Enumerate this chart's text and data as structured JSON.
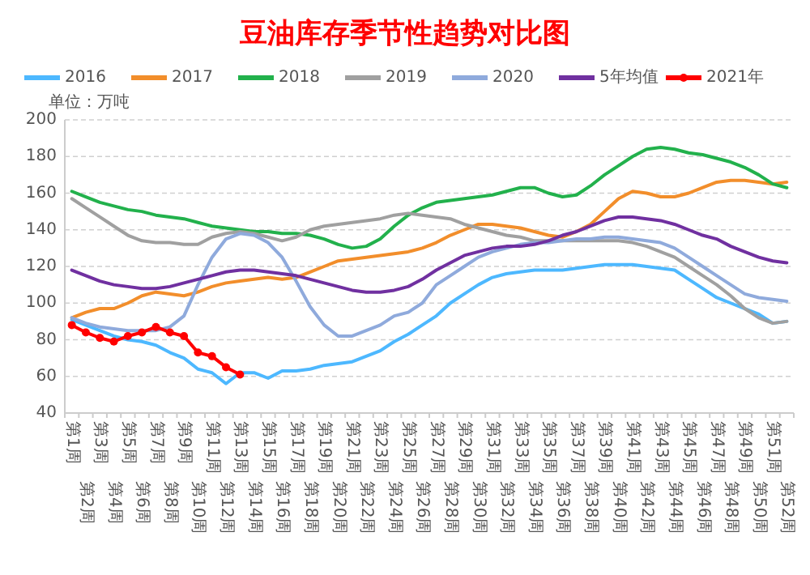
{
  "chart_data": {
    "type": "line",
    "title": "豆油库存季节性趋势对比图",
    "ylabel": "单位：万吨",
    "categories": [
      "第1周",
      "第2周",
      "第3周",
      "第4周",
      "第5周",
      "第6周",
      "第7周",
      "第8周",
      "第9周",
      "第10周",
      "第11周",
      "第12周",
      "第13周",
      "第14周",
      "第15周",
      "第16周",
      "第17周",
      "第18周",
      "第19周",
      "第20周",
      "第21周",
      "第22周",
      "第23周",
      "第24周",
      "第25周",
      "第26周",
      "第27周",
      "第28周",
      "第29周",
      "第30周",
      "第31周",
      "第32周",
      "第33周",
      "第34周",
      "第35周",
      "第36周",
      "第37周",
      "第38周",
      "第39周",
      "第40周",
      "第41周",
      "第42周",
      "第43周",
      "第44周",
      "第45周",
      "第46周",
      "第47周",
      "第48周",
      "第49周",
      "第50周",
      "第51周",
      "第52周"
    ],
    "ylim": [
      40,
      200
    ],
    "yticks": [
      40,
      60,
      80,
      100,
      120,
      140,
      160,
      180,
      200
    ],
    "grid": "y",
    "legend": "top",
    "line_style": "solid",
    "series": [
      {
        "name": "2016",
        "color": "#4db8ff",
        "values": [
          91,
          88,
          85,
          82,
          80,
          79,
          77,
          73,
          70,
          64,
          62,
          56,
          62,
          62,
          59,
          63,
          63,
          64,
          66,
          67,
          68,
          71,
          74,
          79,
          83,
          88,
          93,
          100,
          105,
          110,
          114,
          116,
          117,
          118,
          118,
          118,
          119,
          120,
          121,
          121,
          121,
          120,
          119,
          118,
          113,
          108,
          103,
          100,
          97,
          94,
          89,
          90
        ]
      },
      {
        "name": "2017",
        "color": "#f28e2b",
        "values": [
          92,
          95,
          97,
          97,
          100,
          104,
          106,
          105,
          104,
          106,
          109,
          111,
          112,
          113,
          114,
          113,
          114,
          117,
          120,
          123,
          124,
          125,
          126,
          127,
          128,
          130,
          133,
          137,
          140,
          143,
          143,
          142,
          141,
          139,
          137,
          136,
          139,
          143,
          150,
          157,
          161,
          160,
          158,
          158,
          160,
          163,
          166,
          167,
          167,
          166,
          165,
          166
        ]
      },
      {
        "name": "2018",
        "color": "#22b14c",
        "values": [
          161,
          158,
          155,
          153,
          151,
          150,
          148,
          147,
          146,
          144,
          142,
          141,
          140,
          139,
          139,
          138,
          138,
          137,
          135,
          132,
          130,
          131,
          135,
          142,
          148,
          152,
          155,
          156,
          157,
          158,
          159,
          161,
          163,
          163,
          160,
          158,
          159,
          164,
          170,
          175,
          180,
          184,
          185,
          184,
          182,
          181,
          179,
          177,
          174,
          170,
          165,
          163
        ]
      },
      {
        "name": "2019",
        "color": "#a0a0a0",
        "values": [
          157,
          152,
          147,
          142,
          137,
          134,
          133,
          133,
          132,
          132,
          136,
          138,
          139,
          138,
          136,
          134,
          136,
          140,
          142,
          143,
          144,
          145,
          146,
          148,
          149,
          148,
          147,
          146,
          143,
          141,
          139,
          137,
          136,
          134,
          134,
          134,
          134,
          134,
          134,
          134,
          133,
          131,
          128,
          125,
          120,
          115,
          110,
          104,
          97,
          92,
          89,
          90
        ]
      },
      {
        "name": "2020",
        "color": "#8faadc",
        "values": [
          92,
          89,
          87,
          86,
          85,
          85,
          85,
          87,
          93,
          110,
          125,
          135,
          138,
          137,
          133,
          125,
          112,
          98,
          88,
          82,
          82,
          85,
          88,
          93,
          95,
          100,
          110,
          115,
          120,
          125,
          128,
          130,
          132,
          133,
          133,
          134,
          135,
          135,
          136,
          136,
          135,
          134,
          133,
          130,
          125,
          120,
          115,
          110,
          105,
          103,
          102,
          101
        ]
      },
      {
        "name": "5年均值",
        "color": "#7030a0",
        "values": [
          118,
          115,
          112,
          110,
          109,
          108,
          108,
          109,
          111,
          113,
          115,
          117,
          118,
          118,
          117,
          116,
          115,
          113,
          111,
          109,
          107,
          106,
          106,
          107,
          109,
          113,
          118,
          122,
          126,
          128,
          130,
          131,
          131,
          132,
          134,
          137,
          139,
          142,
          145,
          147,
          147,
          146,
          145,
          143,
          140,
          137,
          135,
          131,
          128,
          125,
          123,
          122
        ]
      },
      {
        "name": "2021年",
        "color": "#ff0000",
        "marker": "circle",
        "values": [
          88,
          84,
          81,
          79,
          82,
          84,
          87,
          84,
          82,
          73,
          71,
          65,
          61,
          null,
          null,
          null,
          null,
          null,
          null,
          null,
          null,
          null,
          null,
          null,
          null,
          null,
          null,
          null,
          null,
          null,
          null,
          null,
          null,
          null,
          null,
          null,
          null,
          null,
          null,
          null,
          null,
          null,
          null,
          null,
          null,
          null,
          null,
          null,
          null,
          null,
          null,
          null
        ]
      }
    ]
  }
}
